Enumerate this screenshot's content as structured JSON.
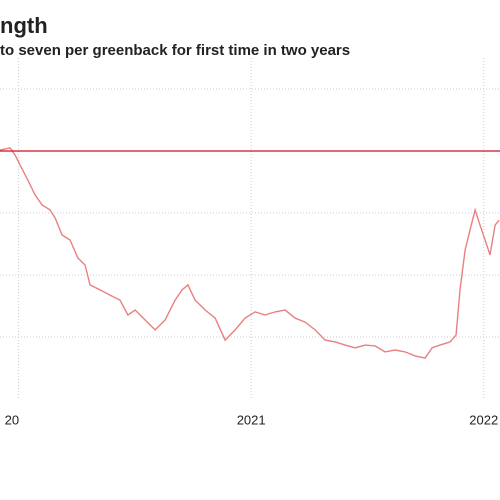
{
  "chart_data": {
    "type": "line",
    "title": "ngth",
    "subtitle": "to seven per greenback for first time in two years",
    "x": [
      2019.92,
      2019.963,
      2019.985,
      2020.006,
      2020.04,
      2020.071,
      2020.101,
      2020.135,
      2020.157,
      2020.187,
      2020.221,
      2020.255,
      2020.286,
      2020.307,
      2020.35,
      2020.393,
      2020.436,
      2020.47,
      2020.501,
      2020.544,
      2020.587,
      2020.63,
      2020.673,
      2020.703,
      2020.728,
      2020.759,
      2020.802,
      2020.845,
      2020.888,
      2020.931,
      2020.974,
      2021.017,
      2021.06,
      2021.103,
      2021.146,
      2021.189,
      2021.232,
      2021.275,
      2021.318,
      2021.361,
      2021.404,
      2021.447,
      2021.49,
      2021.533,
      2021.576,
      2021.619,
      2021.662,
      2021.705,
      2021.748,
      2021.778,
      2021.812,
      2021.855,
      2021.881,
      2021.898,
      2021.92,
      2021.941,
      2021.963,
      2021.984,
      2022.006,
      2022.027,
      2022.049,
      2022.066
    ],
    "values": [
      7.003,
      7.01,
      6.987,
      6.955,
      6.906,
      6.858,
      6.826,
      6.81,
      6.784,
      6.729,
      6.713,
      6.655,
      6.632,
      6.568,
      6.552,
      6.535,
      6.519,
      6.471,
      6.487,
      6.455,
      6.423,
      6.455,
      6.519,
      6.552,
      6.568,
      6.519,
      6.487,
      6.461,
      6.39,
      6.423,
      6.461,
      6.481,
      6.471,
      6.481,
      6.487,
      6.461,
      6.448,
      6.423,
      6.39,
      6.384,
      6.374,
      6.365,
      6.374,
      6.371,
      6.352,
      6.358,
      6.352,
      6.339,
      6.332,
      6.365,
      6.374,
      6.384,
      6.406,
      6.552,
      6.681,
      6.745,
      6.81,
      6.761,
      6.713,
      6.665,
      6.761,
      6.777
    ],
    "color": "#e98080",
    "reference_line": 7.0,
    "reference_color": "#cc1122",
    "xlim": [
      2019.92,
      2022.07
    ],
    "xticks": [
      {
        "value": 2020,
        "label": "20"
      },
      2021,
      2022
    ],
    "ylim": [
      6.2,
      7.3
    ],
    "yticks": [
      6.4,
      6.6,
      6.8,
      7.0,
      7.2
    ],
    "grid": true
  }
}
